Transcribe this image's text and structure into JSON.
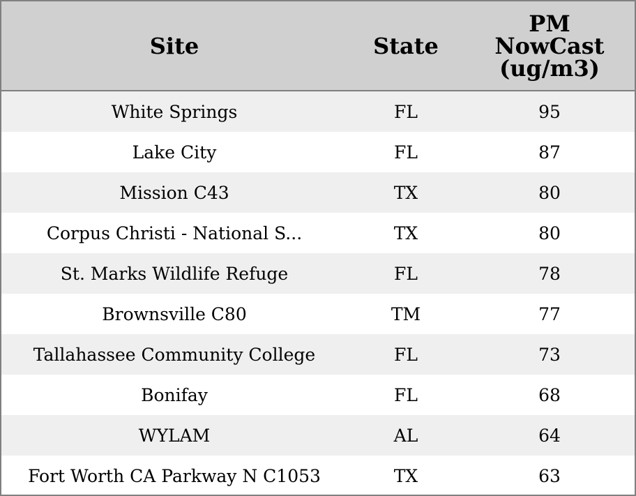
{
  "table": {
    "header": [
      "Site",
      "State",
      "PM NowCast (ug/m3)"
    ],
    "rows": [
      [
        "White Springs",
        "FL",
        95
      ],
      [
        "Lake City",
        "FL",
        87
      ],
      [
        "Mission C43",
        "TX",
        80
      ],
      [
        "Corpus Christi - National S...",
        "TX",
        80
      ],
      [
        "St. Marks Wildlife Refuge",
        "FL",
        78
      ],
      [
        "Brownsville C80",
        "TM",
        77
      ],
      [
        "Tallahassee Community College",
        "FL",
        73
      ],
      [
        "Bonifay",
        "FL",
        68
      ],
      [
        "WYLAM",
        "AL",
        64
      ],
      [
        "Fort Worth CA Parkway N C1053",
        "TX",
        63
      ]
    ]
  }
}
